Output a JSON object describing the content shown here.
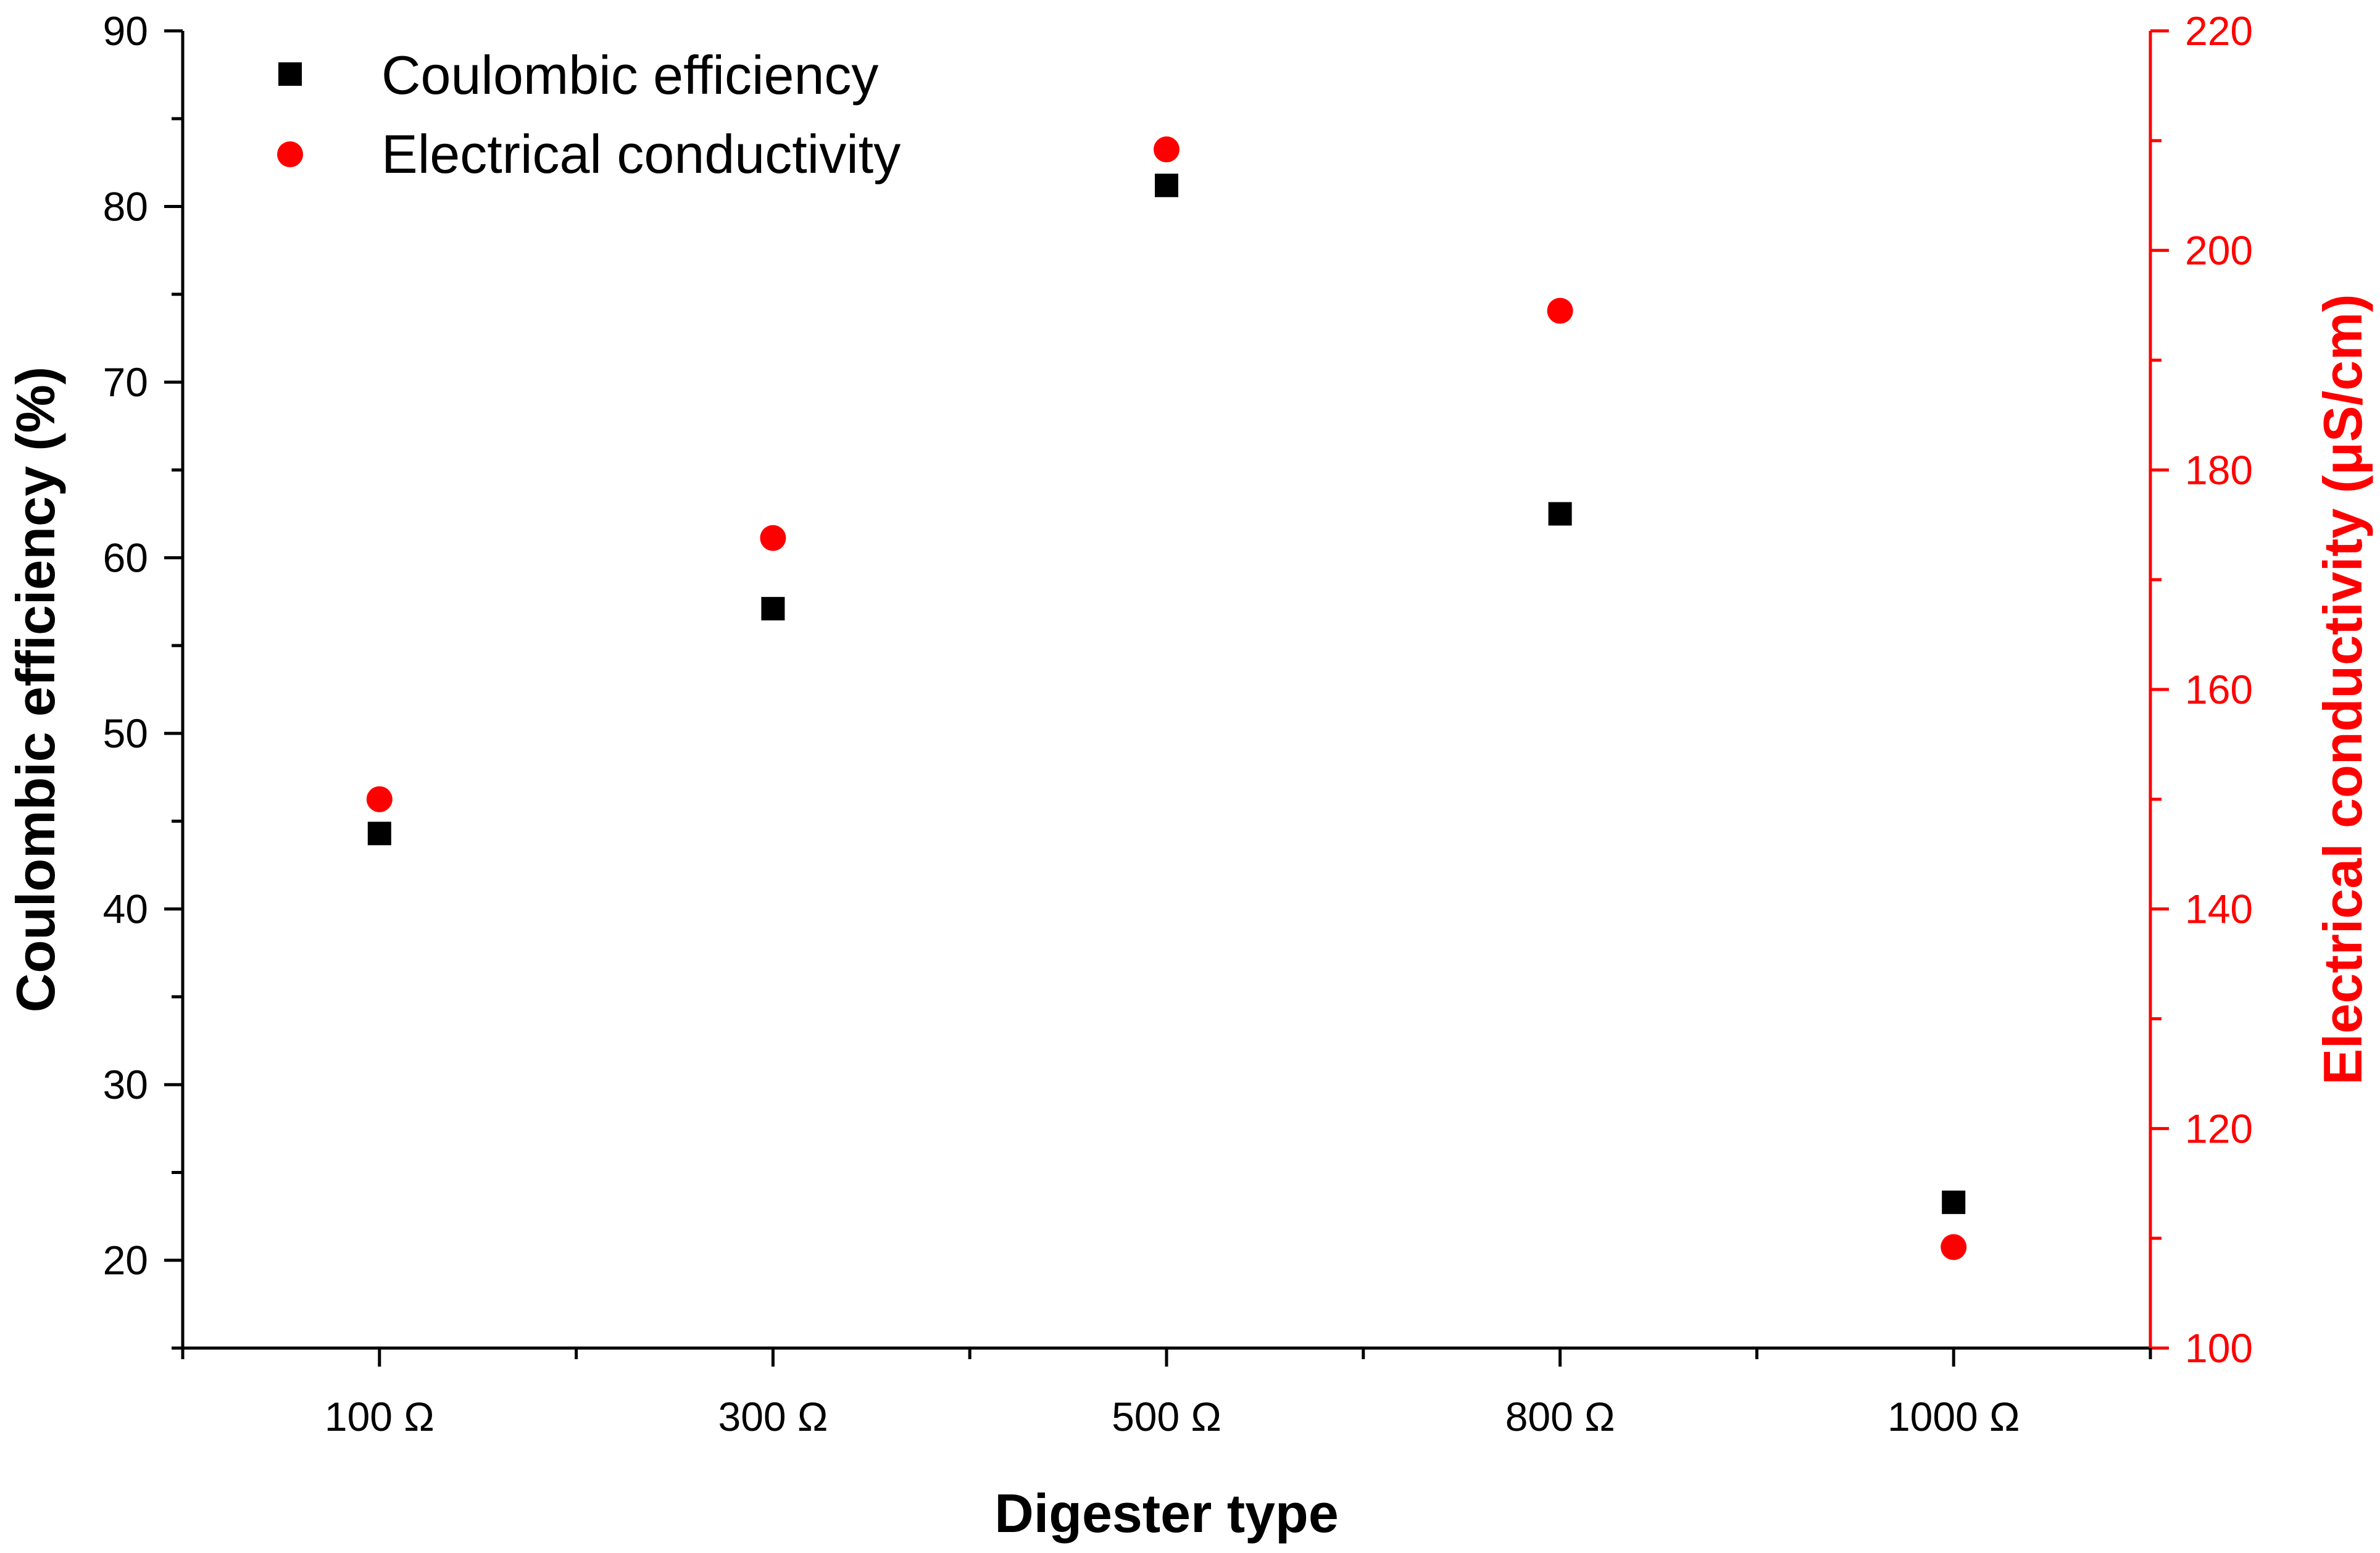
{
  "chart_data": {
    "type": "scatter",
    "title": "",
    "categories": [
      "100 Ω",
      "300 Ω",
      "500  Ω",
      "800  Ω",
      "1000  Ω"
    ],
    "xlabel": "Digester type",
    "ylabel": "Coulombic efficiency (%)",
    "y2label": "Electrical conductivity (μS/cm)",
    "ylim": [
      15,
      90
    ],
    "y2lim": [
      100,
      220
    ],
    "yticks": [
      "20",
      "30",
      "40",
      "50",
      "60",
      "70",
      "80",
      "90"
    ],
    "y2ticks": [
      "100",
      "120",
      "140",
      "160",
      "180",
      "200",
      "220"
    ],
    "legend_position": "top-left",
    "series": [
      {
        "name": "Coulombic efficiency",
        "axis": "left",
        "marker": "square",
        "color": "#000000",
        "values": [
          44.3,
          57.1,
          81.2,
          62.5,
          23.3
        ]
      },
      {
        "name": "Electrical conductivity",
        "axis": "right",
        "marker": "circle",
        "color": "#ff0000",
        "values": [
          150,
          173.8,
          209.2,
          194.5,
          109.2
        ]
      }
    ]
  }
}
